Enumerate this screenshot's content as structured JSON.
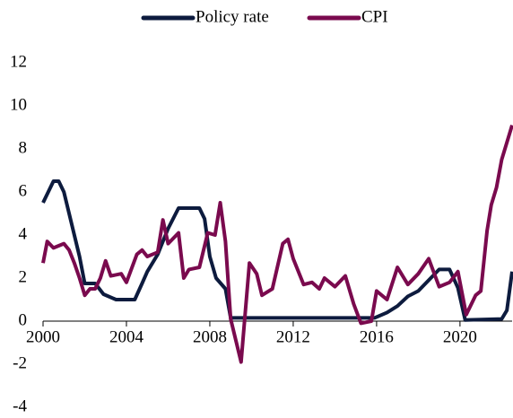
{
  "chart_data": {
    "type": "line",
    "xlim": [
      2000,
      2022.5
    ],
    "xticks": [
      2000,
      2004,
      2008,
      2012,
      2016,
      2020
    ],
    "ylim": [
      -4,
      12
    ],
    "yticks": [
      -4,
      -2,
      0,
      2,
      4,
      6,
      8,
      10,
      12
    ],
    "legend": "top",
    "series": [
      {
        "name": "Policy rate",
        "color": "#0d1b3e",
        "x": [
          2000.0,
          2000.25,
          2000.5,
          2000.75,
          2001.0,
          2001.25,
          2001.5,
          2001.75,
          2002.0,
          2002.5,
          2002.9,
          2003.5,
          2004.4,
          2004.75,
          2005.0,
          2005.5,
          2006.0,
          2006.5,
          2007.5,
          2007.75,
          2008.0,
          2008.3,
          2008.75,
          2009.0,
          2015.9,
          2016.5,
          2017.0,
          2017.5,
          2018.0,
          2018.5,
          2019.0,
          2019.5,
          2019.9,
          2020.25,
          2022.0,
          2022.25,
          2022.5
        ],
        "values": [
          5.5,
          6.0,
          6.5,
          6.5,
          6.0,
          5.0,
          4.0,
          3.0,
          1.75,
          1.75,
          1.25,
          1.0,
          1.0,
          1.75,
          2.3,
          3.1,
          4.3,
          5.25,
          5.25,
          4.75,
          3.0,
          2.0,
          1.5,
          0.15,
          0.15,
          0.4,
          0.7,
          1.15,
          1.4,
          1.9,
          2.4,
          2.4,
          1.55,
          0.05,
          0.1,
          0.5,
          2.3
        ]
      },
      {
        "name": "CPI",
        "color": "#7a0a4e",
        "x": [
          2000.0,
          2000.2,
          2000.5,
          2000.75,
          2001.0,
          2001.25,
          2001.5,
          2001.75,
          2002.0,
          2002.25,
          2002.5,
          2002.75,
          2003.0,
          2003.25,
          2003.75,
          2004.0,
          2004.5,
          2004.75,
          2005.0,
          2005.5,
          2005.75,
          2006.0,
          2006.5,
          2006.75,
          2007.0,
          2007.5,
          2007.9,
          2008.25,
          2008.5,
          2008.75,
          2009.0,
          2009.5,
          2009.9,
          2010.25,
          2010.5,
          2011.0,
          2011.5,
          2011.75,
          2012.0,
          2012.5,
          2012.9,
          2013.25,
          2013.5,
          2014.0,
          2014.5,
          2014.9,
          2015.25,
          2015.75,
          2016.0,
          2016.5,
          2017.0,
          2017.5,
          2018.0,
          2018.5,
          2019.0,
          2019.5,
          2019.9,
          2020.3,
          2020.75,
          2021.0,
          2021.3,
          2021.5,
          2021.75,
          2022.0,
          2022.25,
          2022.5
        ],
        "values": [
          2.7,
          3.7,
          3.4,
          3.5,
          3.6,
          3.3,
          2.7,
          2.0,
          1.2,
          1.5,
          1.5,
          2.0,
          2.8,
          2.1,
          2.2,
          1.8,
          3.1,
          3.3,
          3.0,
          3.2,
          4.7,
          3.6,
          4.1,
          2.0,
          2.4,
          2.5,
          4.1,
          4.0,
          5.5,
          3.7,
          0.1,
          -1.9,
          2.7,
          2.2,
          1.2,
          1.5,
          3.6,
          3.8,
          2.9,
          1.7,
          1.8,
          1.5,
          2.0,
          1.6,
          2.1,
          0.8,
          -0.1,
          0.0,
          1.4,
          1.0,
          2.5,
          1.7,
          2.2,
          2.9,
          1.6,
          1.8,
          2.3,
          0.3,
          1.2,
          1.4,
          4.2,
          5.4,
          6.2,
          7.5,
          8.3,
          9.1
        ]
      }
    ]
  }
}
